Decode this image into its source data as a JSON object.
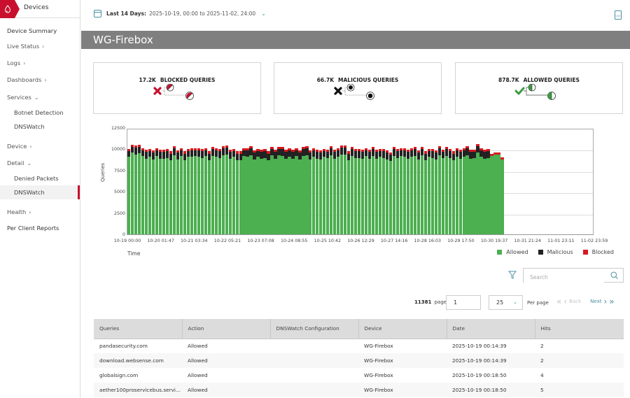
{
  "sidebar": {
    "header": "Devices",
    "items": [
      {
        "label": "Device Summary",
        "type": "top",
        "strong": true,
        "chev": ""
      },
      {
        "label": "Live Status",
        "type": "top",
        "chev": ">"
      },
      {
        "label": "Logs",
        "type": "top",
        "chev": ">"
      },
      {
        "label": "Dashboards",
        "type": "top",
        "chev": ">"
      },
      {
        "label": "Services",
        "type": "top",
        "chev": "v"
      },
      {
        "label": "Botnet Detection",
        "type": "sub"
      },
      {
        "label": "DNSWatch",
        "type": "sub"
      },
      {
        "label": "Device",
        "type": "top",
        "chev": ">"
      },
      {
        "label": "Detail",
        "type": "top",
        "chev": "v"
      },
      {
        "label": "Denied Packets",
        "type": "sub"
      },
      {
        "label": "DNSWatch",
        "type": "sub",
        "active": true
      },
      {
        "label": "Health",
        "type": "top",
        "chev": ">"
      },
      {
        "label": "Per Client Reports",
        "type": "top",
        "strong": true,
        "chev": ""
      }
    ]
  },
  "topbar": {
    "date_label": "Last 14 Days:",
    "date_value": "2025-10-19, 00:00 to 2025-11-02, 24:00",
    "csv_icon_text": "CSV"
  },
  "page": {
    "title": "WG-Firebox"
  },
  "cards": [
    {
      "value": "17.2K",
      "label": "BLOCKED QUERIES",
      "icon": "blocked-icon"
    },
    {
      "value": "66.7K",
      "label": "MALICIOUS QUERIES",
      "icon": "malicious-icon"
    },
    {
      "value": "878.7K",
      "label": "ALLOWED QUERIES",
      "icon": "allowed-icon"
    }
  ],
  "chart_data": {
    "type": "bar",
    "stacked": true,
    "title": "",
    "xlabel": "Time",
    "ylabel": "Queries",
    "ylim": [
      0,
      12500
    ],
    "yticks": [
      "0",
      "2500",
      "5000",
      "7500",
      "10000",
      "12500"
    ],
    "xtick_labels": [
      "10-19 00:00",
      "10-20 01:47",
      "10-21 03:34",
      "10-22 05:21",
      "10-23 07:08",
      "10-24 08:55",
      "10-25 10:42",
      "10-26 12:29",
      "10-27 14:16",
      "10-28 16:03",
      "10-29 17:50",
      "10-30 19:37",
      "10-31 21:24",
      "11-01 23:11",
      "11-02 23:59"
    ],
    "grid": true,
    "legend_position": "bottom-right",
    "colors": {
      "Allowed": "#4caf50",
      "Malicious": "#222222",
      "Blocked": "#d71920"
    },
    "series_note": "approximately 108 time buckets (~3h each) from 10-19 00:00 to ~10-31 03:00; later buckets empty",
    "series": [
      {
        "name": "Allowed",
        "values": [
          9100,
          9600,
          9400,
          9500,
          9200,
          8900,
          9100,
          8800,
          9200,
          8900,
          8900,
          9000,
          8700,
          9300,
          8800,
          9200,
          8700,
          9100,
          9100,
          9200,
          9100,
          9000,
          9200,
          8700,
          9200,
          9100,
          9000,
          9300,
          9400,
          8900,
          9100,
          8700,
          8700,
          9200,
          9100,
          9300,
          8800,
          9100,
          8900,
          9000,
          8700,
          9300,
          8900,
          9300,
          9200,
          8900,
          9100,
          8900,
          9200,
          8800,
          9200,
          9300,
          8800,
          9100,
          8900,
          8800,
          9100,
          9000,
          9300,
          8900,
          9100,
          9400,
          9400,
          8700,
          9200,
          9000,
          9000,
          8900,
          9200,
          8900,
          9200,
          8900,
          9100,
          9000,
          8800,
          8600,
          9200,
          9000,
          9200,
          9100,
          8900,
          9100,
          9200,
          8800,
          9300,
          8700,
          9100,
          9000,
          8800,
          9300,
          9000,
          9200,
          9000,
          8700,
          9100,
          8900,
          9100,
          9300,
          8900,
          9000,
          9600,
          9100,
          8900,
          9000,
          9200,
          9400,
          9400,
          8800
        ],
        "note": "estimated"
      },
      {
        "name": "Malicious",
        "values": [
          700,
          700,
          800,
          800,
          700,
          800,
          700,
          800,
          700,
          800,
          800,
          800,
          800,
          800,
          800,
          700,
          800,
          700,
          800,
          700,
          800,
          800,
          700,
          800,
          800,
          800,
          800,
          800,
          800,
          800,
          700,
          800,
          800,
          700,
          800,
          800,
          800,
          700,
          800,
          800,
          800,
          700,
          800,
          700,
          800,
          800,
          800,
          800,
          700,
          800,
          800,
          800,
          800,
          800,
          800,
          800,
          700,
          700,
          800,
          800,
          800,
          800,
          800,
          800,
          800,
          800,
          800,
          800,
          700,
          800,
          800,
          800,
          700,
          800,
          800,
          800,
          800,
          800,
          700,
          800,
          800,
          800,
          800,
          800,
          700,
          800,
          700,
          800,
          800,
          800,
          700,
          800,
          800,
          800,
          800,
          800,
          800,
          800,
          800,
          700,
          800,
          800,
          800,
          800,
          0,
          0,
          0,
          0
        ]
      },
      {
        "name": "Blocked",
        "values": [
          250,
          250,
          250,
          250,
          250,
          250,
          250,
          250,
          250,
          250,
          250,
          250,
          250,
          250,
          250,
          250,
          250,
          250,
          250,
          250,
          250,
          250,
          250,
          250,
          250,
          250,
          250,
          250,
          250,
          250,
          250,
          250,
          250,
          250,
          250,
          250,
          250,
          250,
          250,
          250,
          250,
          250,
          250,
          250,
          250,
          250,
          250,
          250,
          250,
          250,
          250,
          250,
          250,
          250,
          250,
          250,
          250,
          250,
          250,
          250,
          250,
          250,
          250,
          250,
          250,
          250,
          250,
          250,
          250,
          250,
          250,
          250,
          250,
          250,
          250,
          250,
          250,
          250,
          250,
          250,
          250,
          250,
          250,
          250,
          250,
          250,
          250,
          250,
          250,
          250,
          250,
          250,
          250,
          250,
          250,
          250,
          250,
          250,
          250,
          250,
          250,
          250,
          250,
          250,
          250,
          250,
          250,
          250
        ]
      }
    ],
    "legend": [
      "Allowed",
      "Malicious",
      "Blocked"
    ]
  },
  "toolbar": {
    "search_placeholder": "Search",
    "total_pages": "11381",
    "pages_label": "pages",
    "current_page": "1",
    "per_page": "25",
    "per_page_label": "Per page",
    "back_label": "Back",
    "next_label": "Next"
  },
  "table": {
    "headers": [
      "Queries",
      "Action",
      "DNSWatch Configuration",
      "Device",
      "Date",
      "Hits"
    ],
    "rows": [
      [
        "pandasecurity.com",
        "Allowed",
        "",
        "WG-Firebox",
        "2025-10-19 00:14:39",
        "2"
      ],
      [
        "download.websense.com",
        "Allowed",
        "",
        "WG-Firebox",
        "2025-10-19 00:14:39",
        "2"
      ],
      [
        "globalsign.com",
        "Allowed",
        "",
        "WG-Firebox",
        "2025-10-19 00:18:50",
        "4"
      ],
      [
        "aether100proservicebus.servi...",
        "Allowed",
        "",
        "WG-Firebox",
        "2025-10-19 00:18:50",
        "5"
      ]
    ]
  }
}
